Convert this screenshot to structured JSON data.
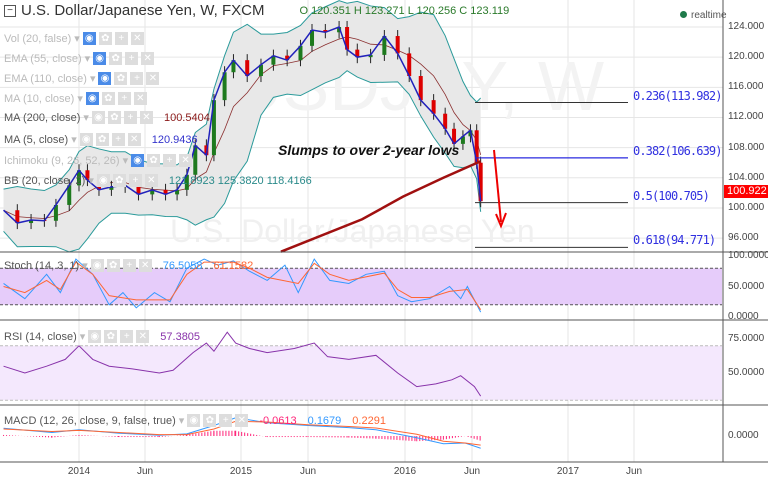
{
  "header": {
    "title": "U.S. Dollar/Japanese Yen, W, FXCM",
    "ohlc": "O 120.351  H 123.271  L 120.256  C 123.119",
    "realtime": "realtime",
    "last_price": "100.922"
  },
  "legend": [
    {
      "label": "Vol (20, false)",
      "value": "",
      "faint": true
    },
    {
      "label": "EMA (55, close)",
      "value": "",
      "faint": true
    },
    {
      "label": "EMA (110, close)",
      "value": "",
      "faint": true
    },
    {
      "label": "MA (10, close)",
      "value": "",
      "faint": true
    },
    {
      "label": "MA (200, close)",
      "value": "100.5404",
      "faint": false,
      "color": "#8b1a1a"
    },
    {
      "label": "MA (5, close)",
      "value": "120.9436",
      "faint": false,
      "color": "#3333cc"
    },
    {
      "label": "Ichimoku (9, 26, 52, 26)",
      "value": "",
      "faint": true
    },
    {
      "label": "BB (20, close, 2)",
      "value": "121.8923  125.3820  118.4166",
      "faint": false,
      "color": "#2a8a8a"
    }
  ],
  "annotation": "Slumps to over 2-year lows",
  "watermark": {
    "symbol": "USDJPY, W",
    "name": "U.S. Dollar/Japanese Yen"
  },
  "colors": {
    "up": "#1e7a1e",
    "down": "#dd0000",
    "ma5": "#2222bb",
    "ma200": "#a01010",
    "bb": "#2a9a9a",
    "fib": "#2020dd",
    "stoch_k": "#3399ff",
    "stoch_d": "#ff6633",
    "rsi": "#8833aa",
    "macd_hist": "#ff2277"
  },
  "chart_data": [
    {
      "type": "candlestick",
      "title": "U.S. Dollar/Japanese Yen, W, FXCM",
      "ylim": [
        94,
        126
      ],
      "yticks": [
        "124.000",
        "120.000",
        "116.000",
        "112.000",
        "108.000",
        "104.000",
        "100.000",
        "96.000"
      ],
      "closes": [
        [
          "2013-07-15",
          99.7
        ],
        [
          "2013-08-15",
          98.0
        ],
        [
          "2013-09-15",
          98.4
        ],
        [
          "2013-10-15",
          98.3
        ],
        [
          "2013-11-10",
          100.4
        ],
        [
          "2013-12-10",
          103.0
        ],
        [
          "2014-01-01",
          105.0
        ],
        [
          "2014-01-20",
          103.7
        ],
        [
          "2014-02-15",
          102.4
        ],
        [
          "2014-03-15",
          102.8
        ],
        [
          "2014-04-15",
          103.0
        ],
        [
          "2014-05-15",
          101.8
        ],
        [
          "2014-06-15",
          102.4
        ],
        [
          "2014-07-15",
          101.8
        ],
        [
          "2014-08-10",
          102.4
        ],
        [
          "2014-09-01",
          104.4
        ],
        [
          "2014-09-20",
          108.3
        ],
        [
          "2014-10-15",
          107.0
        ],
        [
          "2014-11-01",
          114.3
        ],
        [
          "2014-11-25",
          118.0
        ],
        [
          "2014-12-15",
          119.6
        ],
        [
          "2015-01-15",
          117.5
        ],
        [
          "2015-02-15",
          119.0
        ],
        [
          "2015-03-15",
          120.2
        ],
        [
          "2015-04-15",
          119.6
        ],
        [
          "2015-05-15",
          121.5
        ],
        [
          "2015-06-10",
          123.6
        ],
        [
          "2015-07-10",
          123.3
        ],
        [
          "2015-08-10",
          124.0
        ],
        [
          "2015-08-28",
          121.0
        ],
        [
          "2015-09-20",
          120.0
        ],
        [
          "2015-10-20",
          120.3
        ],
        [
          "2015-11-20",
          122.8
        ],
        [
          "2015-12-20",
          120.5
        ],
        [
          "2016-01-15",
          117.5
        ],
        [
          "2016-02-10",
          114.3
        ],
        [
          "2016-03-10",
          112.5
        ],
        [
          "2016-04-05",
          110.5
        ],
        [
          "2016-04-25",
          108.5
        ],
        [
          "2016-05-15",
          109.5
        ],
        [
          "2016-06-01",
          110.3
        ],
        [
          "2016-06-15",
          106.0
        ],
        [
          "2016-06-24",
          100.9
        ]
      ],
      "ma200": [
        [
          "2015-04-01",
          94.2
        ],
        [
          "2015-10-01",
          98.5
        ],
        [
          "2016-01-01",
          101.5
        ],
        [
          "2016-04-01",
          104.0
        ],
        [
          "2016-06-24",
          106.2
        ]
      ],
      "fib_levels": [
        {
          "label": "0.236(113.982)",
          "value": 113.982
        },
        {
          "label": "0.382(106.639)",
          "value": 106.639
        },
        {
          "label": "0.5(100.705)",
          "value": 100.705
        },
        {
          "label": "0.618(94.771)",
          "value": 94.771
        }
      ],
      "x_ticks": [
        "2014",
        "Jun",
        "2015",
        "Jun",
        "2016",
        "Jun",
        "2017",
        "Jun"
      ]
    },
    {
      "type": "line",
      "title": "Stoch (14, 3, 1)",
      "values_label": [
        "76.5058",
        "61.1582"
      ],
      "ylim": [
        0,
        100
      ],
      "yticks": [
        "100.0000",
        "50.0000",
        "0.0000"
      ],
      "band": [
        20,
        80
      ],
      "k": [
        [
          "2013-07-15",
          55
        ],
        [
          "2013-09-01",
          30
        ],
        [
          "2013-10-20",
          70
        ],
        [
          "2013-11-20",
          40
        ],
        [
          "2013-12-25",
          95
        ],
        [
          "2014-02-01",
          70
        ],
        [
          "2014-03-10",
          20
        ],
        [
          "2014-04-10",
          40
        ],
        [
          "2014-05-10",
          15
        ],
        [
          "2014-06-20",
          40
        ],
        [
          "2014-07-25",
          25
        ],
        [
          "2014-09-01",
          80
        ],
        [
          "2014-10-10",
          95
        ],
        [
          "2014-11-10",
          85
        ],
        [
          "2014-12-15",
          92
        ],
        [
          "2015-01-20",
          75
        ],
        [
          "2015-03-01",
          60
        ],
        [
          "2015-04-10",
          85
        ],
        [
          "2015-05-10",
          40
        ],
        [
          "2015-06-15",
          95
        ],
        [
          "2015-07-20",
          60
        ],
        [
          "2015-09-01",
          55
        ],
        [
          "2015-10-10",
          70
        ],
        [
          "2015-11-20",
          75
        ],
        [
          "2015-12-20",
          35
        ],
        [
          "2016-01-20",
          25
        ],
        [
          "2016-03-01",
          30
        ],
        [
          "2016-04-15",
          50
        ],
        [
          "2016-05-10",
          30
        ],
        [
          "2016-05-25",
          50
        ],
        [
          "2016-06-24",
          8
        ]
      ],
      "d": [
        [
          "2013-07-15",
          50
        ],
        [
          "2013-09-01",
          40
        ],
        [
          "2013-10-20",
          60
        ],
        [
          "2013-11-20",
          45
        ],
        [
          "2013-12-25",
          90
        ],
        [
          "2014-02-01",
          70
        ],
        [
          "2014-03-10",
          35
        ],
        [
          "2014-05-10",
          28
        ],
        [
          "2014-07-25",
          28
        ],
        [
          "2014-09-01",
          70
        ],
        [
          "2014-10-10",
          90
        ],
        [
          "2014-12-15",
          90
        ],
        [
          "2015-01-20",
          80
        ],
        [
          "2015-03-01",
          65
        ],
        [
          "2015-05-10",
          55
        ],
        [
          "2015-06-15",
          88
        ],
        [
          "2015-07-20",
          70
        ],
        [
          "2015-09-01",
          60
        ],
        [
          "2015-11-20",
          72
        ],
        [
          "2015-12-20",
          45
        ],
        [
          "2016-01-20",
          32
        ],
        [
          "2016-03-01",
          32
        ],
        [
          "2016-04-15",
          42
        ],
        [
          "2016-05-25",
          45
        ],
        [
          "2016-06-24",
          12
        ]
      ]
    },
    {
      "type": "line",
      "title": "RSI (14, close)",
      "values_label": [
        "57.3805"
      ],
      "ylim": [
        25,
        85
      ],
      "yticks": [
        "75.0000",
        "50.0000"
      ],
      "band": [
        30,
        70
      ],
      "values": [
        [
          "2013-07-15",
          55
        ],
        [
          "2013-09-01",
          50
        ],
        [
          "2013-10-20",
          55
        ],
        [
          "2013-12-01",
          60
        ],
        [
          "2014-01-01",
          70
        ],
        [
          "2014-02-01",
          60
        ],
        [
          "2014-03-10",
          55
        ],
        [
          "2014-05-01",
          53
        ],
        [
          "2014-07-01",
          50
        ],
        [
          "2014-08-01",
          52
        ],
        [
          "2014-09-15",
          65
        ],
        [
          "2014-10-15",
          72
        ],
        [
          "2014-11-01",
          66
        ],
        [
          "2014-12-01",
          80
        ],
        [
          "2014-12-20",
          72
        ],
        [
          "2015-01-20",
          68
        ],
        [
          "2015-03-01",
          65
        ],
        [
          "2015-05-01",
          68
        ],
        [
          "2015-06-15",
          72
        ],
        [
          "2015-07-15",
          62
        ],
        [
          "2015-09-01",
          60
        ],
        [
          "2015-11-01",
          63
        ],
        [
          "2015-12-20",
          50
        ],
        [
          "2016-02-01",
          40
        ],
        [
          "2016-03-15",
          42
        ],
        [
          "2016-04-20",
          45
        ],
        [
          "2016-05-10",
          48
        ],
        [
          "2016-06-10",
          40
        ],
        [
          "2016-06-24",
          33
        ]
      ]
    },
    {
      "type": "line",
      "title": "MACD (12, 26, close, 9, false, true)",
      "values_label": [
        "-0.0613",
        "0.1679",
        "0.2291"
      ],
      "yticks": [
        "0.0000"
      ],
      "macd": [
        [
          "2013-07-15",
          2.2
        ],
        [
          "2013-11-01",
          1.0
        ],
        [
          "2014-01-01",
          1.8
        ],
        [
          "2014-04-01",
          0.8
        ],
        [
          "2014-07-01",
          0.2
        ],
        [
          "2014-09-01",
          0.6
        ],
        [
          "2014-11-01",
          3.0
        ],
        [
          "2014-12-20",
          5.2
        ],
        [
          "2015-03-01",
          3.8
        ],
        [
          "2015-06-01",
          3.0
        ],
        [
          "2015-09-01",
          2.4
        ],
        [
          "2015-11-01",
          1.8
        ],
        [
          "2016-02-01",
          -0.5
        ],
        [
          "2016-04-01",
          -2.2
        ],
        [
          "2016-05-20",
          -2.0
        ],
        [
          "2016-06-24",
          -3.5
        ]
      ],
      "signal": [
        [
          "2013-07-15",
          2.0
        ],
        [
          "2013-11-01",
          1.3
        ],
        [
          "2014-01-01",
          1.6
        ],
        [
          "2014-04-01",
          1.0
        ],
        [
          "2014-07-01",
          0.4
        ],
        [
          "2014-09-01",
          0.4
        ],
        [
          "2014-11-01",
          2.0
        ],
        [
          "2014-12-20",
          4.2
        ],
        [
          "2015-03-01",
          4.0
        ],
        [
          "2015-06-01",
          3.2
        ],
        [
          "2015-09-01",
          2.7
        ],
        [
          "2015-11-01",
          2.3
        ],
        [
          "2016-02-01",
          0.5
        ],
        [
          "2016-04-01",
          -1.5
        ],
        [
          "2016-05-20",
          -2.0
        ],
        [
          "2016-06-24",
          -2.6
        ]
      ]
    }
  ]
}
